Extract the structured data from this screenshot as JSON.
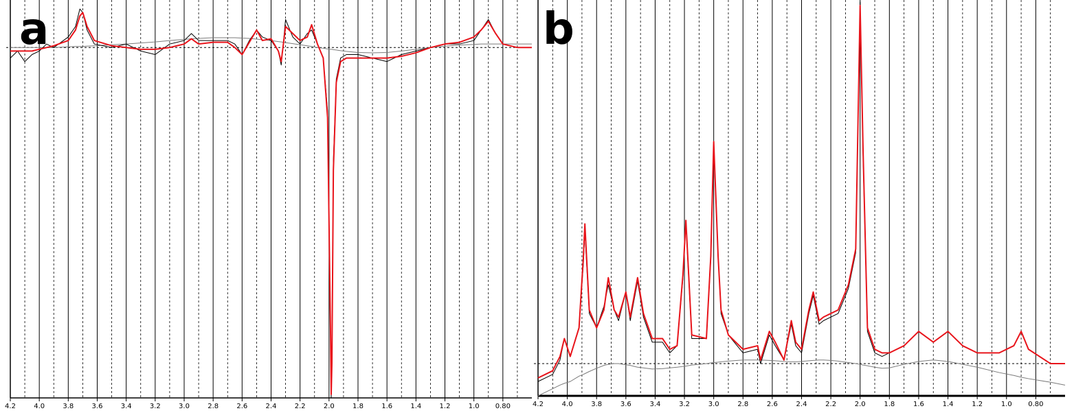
{
  "chart_data": [
    {
      "type": "line",
      "label": "a",
      "grid": true,
      "xlim": [
        4.2,
        0.6
      ],
      "ylim": [
        -100,
        12
      ],
      "xticks": [
        4.2,
        {
          "value": 4,
          "label": "4.0"
        },
        3.8,
        3.6,
        3.4,
        3.2,
        {
          "value": 3,
          "label": "3.0"
        },
        2.8,
        2.6,
        2.4,
        2.2,
        {
          "value": 2,
          "label": "2.0"
        },
        1.8,
        1.6,
        1.4,
        1.2,
        {
          "value": 1,
          "label": "1.0"
        },
        {
          "value": 0.8,
          "label": "0.80"
        }
      ],
      "x": [
        4.2,
        4.15,
        4.1,
        4.05,
        4.0,
        3.95,
        3.9,
        3.8,
        3.75,
        3.72,
        3.7,
        3.67,
        3.62,
        3.5,
        3.4,
        3.3,
        3.2,
        3.1,
        3.0,
        2.95,
        2.9,
        2.8,
        2.7,
        2.65,
        2.6,
        2.55,
        2.5,
        2.46,
        2.4,
        2.35,
        2.33,
        2.3,
        2.25,
        2.2,
        2.15,
        2.12,
        2.08,
        2.04,
        2.01,
        1.99,
        1.985,
        1.98,
        1.97,
        1.95,
        1.92,
        1.88,
        1.8,
        1.7,
        1.6,
        1.5,
        1.4,
        1.3,
        1.2,
        1.1,
        1.0,
        0.95,
        0.9,
        0.85,
        0.8,
        0.7,
        0.6
      ],
      "series": [
        {
          "color": "#7a7a7a",
          "values": [
            0,
            0,
            0,
            0,
            0,
            0,
            0,
            0.2,
            0.3,
            0.3,
            0.3,
            0.4,
            0.5,
            0.8,
            1,
            1.3,
            1.6,
            2,
            2.3,
            2.5,
            2.6,
            2.8,
            2.8,
            2.8,
            2.7,
            2.6,
            2.4,
            2.2,
            2,
            1.7,
            1.6,
            1.4,
            1.1,
            0.8,
            0.5,
            0.3,
            0,
            -0.2,
            -0.4,
            -0.5,
            -0.5,
            -0.5,
            -0.6,
            -0.7,
            -0.9,
            -1.1,
            -1.4,
            -1.5,
            -1.4,
            -1,
            -0.5,
            0,
            0.4,
            0.7,
            0.9,
            1,
            1,
            1,
            1,
            1,
            1
          ]
        },
        {
          "color": "#000000",
          "values": [
            -3,
            -1,
            -4,
            -2,
            -1,
            1,
            0,
            3,
            6,
            11,
            10,
            5,
            1,
            0,
            1,
            -1,
            -2,
            1,
            2,
            4,
            2,
            2,
            2,
            1,
            -2,
            2,
            5,
            3,
            2,
            -1,
            -5,
            8,
            3,
            1,
            4,
            5,
            1,
            -3,
            -18,
            -82,
            -100,
            -88,
            -32,
            -9,
            -3,
            -2,
            -2,
            -3,
            -4,
            -2,
            -1,
            0,
            1,
            1,
            2,
            5,
            8,
            4,
            1,
            0,
            0
          ]
        },
        {
          "color": "#e8141b",
          "values": [
            -1,
            -1,
            -1,
            -1,
            -0.5,
            0,
            0.5,
            2,
            5,
            9,
            10,
            6,
            2,
            0.5,
            0,
            -0.5,
            -0.5,
            0,
            1,
            2.5,
            1,
            1.5,
            1.5,
            0,
            -2,
            1.5,
            5,
            2,
            2.5,
            -1,
            -4,
            6,
            4,
            2,
            3,
            6.5,
            1,
            -3,
            -20,
            -80,
            -99,
            -90,
            -35,
            -10,
            -4,
            -3,
            -3,
            -3,
            -3,
            -2.5,
            -1.5,
            0,
            1,
            1.5,
            3,
            5,
            7.5,
            4,
            1,
            0,
            0
          ]
        }
      ]
    },
    {
      "type": "line",
      "label": "b",
      "grid": true,
      "xlim": [
        4.2,
        0.6
      ],
      "ylim": [
        -9,
        100
      ],
      "xticks": [
        4.2,
        {
          "value": 4,
          "label": "4.0"
        },
        3.8,
        3.6,
        3.4,
        3.2,
        {
          "value": 3,
          "label": "3.0"
        },
        2.8,
        2.6,
        2.4,
        2.2,
        {
          "value": 2,
          "label": "2.0"
        },
        1.8,
        1.6,
        1.4,
        1.2,
        {
          "value": 1,
          "label": "1.0"
        },
        {
          "value": 0.8,
          "label": "0.80"
        }
      ],
      "x": [
        4.2,
        4.15,
        4.1,
        4.05,
        4.02,
        3.98,
        3.92,
        3.89,
        3.88,
        3.85,
        3.8,
        3.75,
        3.72,
        3.68,
        3.65,
        3.6,
        3.57,
        3.52,
        3.48,
        3.42,
        3.35,
        3.3,
        3.25,
        3.21,
        3.19,
        3.15,
        3.05,
        3.02,
        3.0,
        2.97,
        2.95,
        2.9,
        2.8,
        2.7,
        2.68,
        2.62,
        2.58,
        2.52,
        2.47,
        2.44,
        2.4,
        2.35,
        2.32,
        2.28,
        2.25,
        2.2,
        2.15,
        2.08,
        2.03,
        2.0,
        1.98,
        1.95,
        1.9,
        1.85,
        1.8,
        1.7,
        1.6,
        1.5,
        1.4,
        1.3,
        1.2,
        1.05,
        0.95,
        0.9,
        0.85,
        0.7,
        0.6
      ],
      "series": [
        {
          "color": "#7a7a7a",
          "values": [
            -9,
            -8,
            -7,
            -6,
            -5.5,
            -5,
            -3.5,
            -3,
            -2.8,
            -2.2,
            -1.3,
            -0.5,
            -0.2,
            0,
            0,
            -0.3,
            -0.5,
            -1,
            -1.2,
            -1.5,
            -1.4,
            -1.2,
            -1,
            -0.8,
            -0.7,
            -0.4,
            0,
            0.2,
            0.3,
            0.4,
            0.5,
            0.7,
            1,
            1,
            1,
            0.9,
            0.8,
            0.6,
            0.5,
            0.5,
            0.6,
            0.8,
            0.9,
            1,
            1,
            0.9,
            0.7,
            0.3,
            0,
            -0.2,
            -0.4,
            -0.6,
            -1,
            -1.3,
            -1.2,
            -0.2,
            0.6,
            1,
            0.6,
            -0.2,
            -1,
            -2.5,
            -3.3,
            -3.8,
            -4.2,
            -5.2,
            -6
          ]
        },
        {
          "color": "#000000",
          "values": [
            -5,
            -4,
            -3,
            1,
            7,
            2,
            10,
            28,
            37,
            14,
            10,
            16,
            22,
            15,
            12,
            20,
            12,
            23,
            13,
            6,
            6,
            3,
            5,
            24,
            39,
            7,
            7,
            29,
            60,
            30,
            14,
            8,
            3,
            4,
            0,
            8,
            5,
            1,
            11,
            5,
            3,
            14,
            19,
            11,
            12,
            13,
            14,
            21,
            31,
            101,
            58,
            9,
            3,
            2,
            3,
            5,
            9,
            6,
            9,
            5,
            3,
            3,
            5,
            9,
            4,
            0,
            0
          ]
        },
        {
          "color": "#e8141b",
          "values": [
            -4,
            -3,
            -2,
            2,
            7,
            2,
            10,
            30,
            39,
            15,
            10,
            15,
            24,
            15,
            13,
            20,
            13,
            24,
            14,
            7,
            7,
            4,
            5,
            25,
            40,
            8,
            7,
            30,
            62,
            30,
            15,
            8,
            4,
            5,
            1,
            9,
            6,
            1,
            12,
            6,
            4,
            15,
            20,
            12,
            13,
            14,
            15,
            22,
            32,
            100,
            60,
            10,
            4,
            3,
            3,
            5,
            9,
            6,
            9,
            5,
            3,
            3,
            5,
            9,
            4,
            0,
            0
          ]
        }
      ]
    }
  ]
}
